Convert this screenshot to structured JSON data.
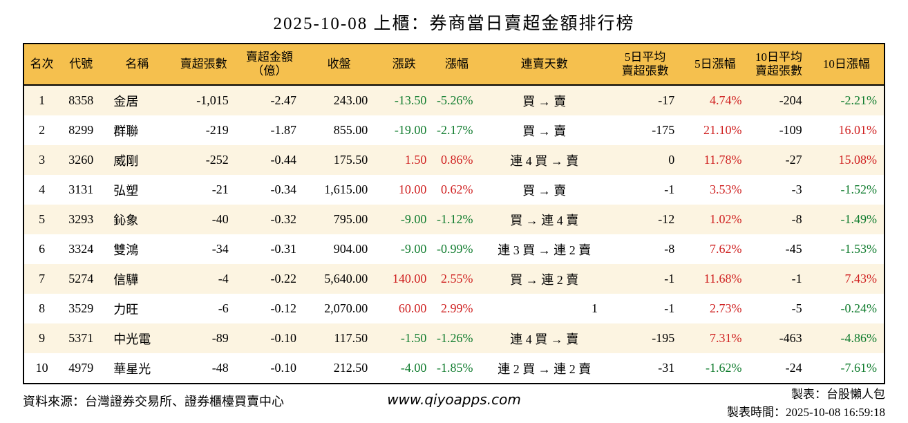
{
  "colors": {
    "up": "#cf1f1f",
    "down": "#107c2e",
    "header_bg": "#f5c04e",
    "row_alt_bg": "#fcf4e1",
    "border": "#000000"
  },
  "chart_data": {
    "type": "table",
    "title": "2025-10-08 上櫃：券商當日賣超金額排行榜",
    "columns": [
      "名次",
      "代號",
      "名稱",
      "賣超張數",
      "賣超金額\n（億）",
      "收盤",
      "漲跌",
      "漲幅",
      "連賣天數",
      "5日平均\n賣超張數",
      "5日漲幅",
      "10日平均\n賣超張數",
      "10日漲幅"
    ],
    "rows": [
      {
        "rank": "1",
        "code": "8358",
        "name": "金居",
        "sold_shares": "-1,015",
        "sold_amount": "-2.47",
        "close": "243.00",
        "change": {
          "v": "-13.50",
          "c": "down"
        },
        "change_pct": {
          "v": "-5.26%",
          "c": "down"
        },
        "streak": "買 → 賣",
        "avg5": "-17",
        "pct5": {
          "v": "4.74%",
          "c": "up"
        },
        "avg10": "-204",
        "pct10": {
          "v": "-2.21%",
          "c": "down"
        }
      },
      {
        "rank": "2",
        "code": "8299",
        "name": "群聯",
        "sold_shares": "-219",
        "sold_amount": "-1.87",
        "close": "855.00",
        "change": {
          "v": "-19.00",
          "c": "down"
        },
        "change_pct": {
          "v": "-2.17%",
          "c": "down"
        },
        "streak": "買 → 賣",
        "avg5": "-175",
        "pct5": {
          "v": "21.10%",
          "c": "up"
        },
        "avg10": "-109",
        "pct10": {
          "v": "16.01%",
          "c": "up"
        }
      },
      {
        "rank": "3",
        "code": "3260",
        "name": "威剛",
        "sold_shares": "-252",
        "sold_amount": "-0.44",
        "close": "175.50",
        "change": {
          "v": "1.50",
          "c": "up"
        },
        "change_pct": {
          "v": "0.86%",
          "c": "up"
        },
        "streak": "連 4 買 → 賣",
        "avg5": "0",
        "pct5": {
          "v": "11.78%",
          "c": "up"
        },
        "avg10": "-27",
        "pct10": {
          "v": "15.08%",
          "c": "up"
        }
      },
      {
        "rank": "4",
        "code": "3131",
        "name": "弘塑",
        "sold_shares": "-21",
        "sold_amount": "-0.34",
        "close": "1,615.00",
        "change": {
          "v": "10.00",
          "c": "up"
        },
        "change_pct": {
          "v": "0.62%",
          "c": "up"
        },
        "streak": "買 → 賣",
        "avg5": "-1",
        "pct5": {
          "v": "3.53%",
          "c": "up"
        },
        "avg10": "-3",
        "pct10": {
          "v": "-1.52%",
          "c": "down"
        }
      },
      {
        "rank": "5",
        "code": "3293",
        "name": "鈊象",
        "sold_shares": "-40",
        "sold_amount": "-0.32",
        "close": "795.00",
        "change": {
          "v": "-9.00",
          "c": "down"
        },
        "change_pct": {
          "v": "-1.12%",
          "c": "down"
        },
        "streak": "買 → 連 4 賣",
        "avg5": "-12",
        "pct5": {
          "v": "1.02%",
          "c": "up"
        },
        "avg10": "-8",
        "pct10": {
          "v": "-1.49%",
          "c": "down"
        }
      },
      {
        "rank": "6",
        "code": "3324",
        "name": "雙鴻",
        "sold_shares": "-34",
        "sold_amount": "-0.31",
        "close": "904.00",
        "change": {
          "v": "-9.00",
          "c": "down"
        },
        "change_pct": {
          "v": "-0.99%",
          "c": "down"
        },
        "streak": "連 3 買 → 連 2 賣",
        "avg5": "-8",
        "pct5": {
          "v": "7.62%",
          "c": "up"
        },
        "avg10": "-45",
        "pct10": {
          "v": "-1.53%",
          "c": "down"
        }
      },
      {
        "rank": "7",
        "code": "5274",
        "name": "信驊",
        "sold_shares": "-4",
        "sold_amount": "-0.22",
        "close": "5,640.00",
        "change": {
          "v": "140.00",
          "c": "up"
        },
        "change_pct": {
          "v": "2.55%",
          "c": "up"
        },
        "streak": "買 → 連 2 賣",
        "avg5": "-1",
        "pct5": {
          "v": "11.68%",
          "c": "up"
        },
        "avg10": "-1",
        "pct10": {
          "v": "7.43%",
          "c": "up"
        }
      },
      {
        "rank": "8",
        "code": "3529",
        "name": "力旺",
        "sold_shares": "-6",
        "sold_amount": "-0.12",
        "close": "2,070.00",
        "change": {
          "v": "60.00",
          "c": "up"
        },
        "change_pct": {
          "v": "2.99%",
          "c": "up"
        },
        "streak": "1",
        "avg5": "-1",
        "pct5": {
          "v": "2.73%",
          "c": "up"
        },
        "avg10": "-5",
        "pct10": {
          "v": "-0.24%",
          "c": "down"
        }
      },
      {
        "rank": "9",
        "code": "5371",
        "name": "中光電",
        "sold_shares": "-89",
        "sold_amount": "-0.10",
        "close": "117.50",
        "change": {
          "v": "-1.50",
          "c": "down"
        },
        "change_pct": {
          "v": "-1.26%",
          "c": "down"
        },
        "streak": "連 4 買 → 賣",
        "avg5": "-195",
        "pct5": {
          "v": "7.31%",
          "c": "up"
        },
        "avg10": "-463",
        "pct10": {
          "v": "-4.86%",
          "c": "down"
        }
      },
      {
        "rank": "10",
        "code": "4979",
        "name": "華星光",
        "sold_shares": "-48",
        "sold_amount": "-0.10",
        "close": "212.50",
        "change": {
          "v": "-4.00",
          "c": "down"
        },
        "change_pct": {
          "v": "-1.85%",
          "c": "down"
        },
        "streak": "連 2 買 → 連 2 賣",
        "avg5": "-31",
        "pct5": {
          "v": "-1.62%",
          "c": "down"
        },
        "avg10": "-24",
        "pct10": {
          "v": "-7.61%",
          "c": "down"
        }
      }
    ]
  },
  "footer": {
    "source": "資料來源：台灣證券交易所、證券櫃檯買賣中心",
    "website": "www.qiyoapps.com",
    "maker": "製表：台股懶人包",
    "timestamp": "製表時間：2025-10-08 16:59:18"
  }
}
